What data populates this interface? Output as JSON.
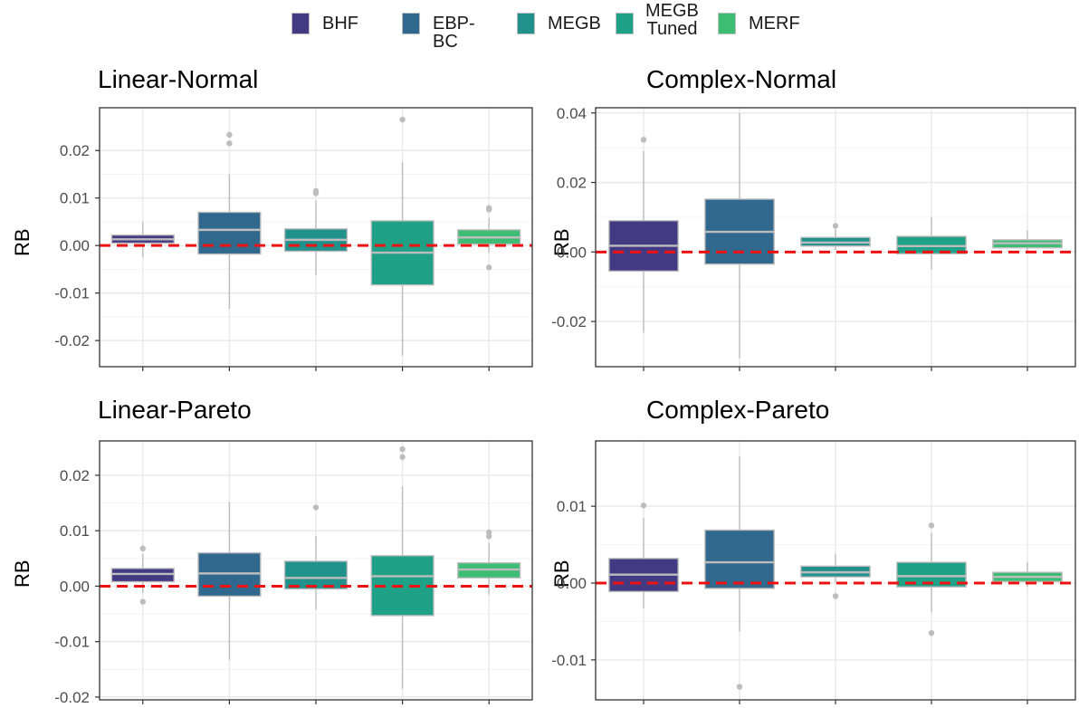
{
  "legend": {
    "items": [
      {
        "label": "BHF",
        "color": "#443983"
      },
      {
        "label": "EBP-BC",
        "color": "#31688e"
      },
      {
        "label": "MEGB",
        "color": "#21918c"
      },
      {
        "label": "MEGB\nTuned",
        "color": "#1fa187"
      },
      {
        "label": "MERF",
        "color": "#3dbc74"
      }
    ]
  },
  "colors": {
    "reference_line": "#ee1111",
    "box_outline": "#bdbdbd",
    "grid": "#ebebeb"
  },
  "chart_data": [
    {
      "type": "boxplot",
      "title": "Linear-Normal",
      "ylabel": "RB",
      "ylim": [
        -0.0255,
        0.029
      ],
      "yticks": [
        -0.02,
        -0.01,
        0.0,
        0.01,
        0.02
      ],
      "ytick_labels": [
        "-0.02",
        "-0.01",
        "0.00",
        "0.01",
        "0.02"
      ],
      "reference_line": 0,
      "boxes": [
        {
          "series": "BHF",
          "q1": 0.0005,
          "median": 0.0013,
          "q3": 0.0022,
          "whisker_low": -0.0025,
          "whisker_high": 0.005,
          "outliers": []
        },
        {
          "series": "EBP-BC",
          "q1": -0.0018,
          "median": 0.0033,
          "q3": 0.007,
          "whisker_low": -0.0133,
          "whisker_high": 0.015,
          "outliers": [
            0.0215,
            0.0233
          ]
        },
        {
          "series": "MEGB",
          "q1": -0.0012,
          "median": 0.0012,
          "q3": 0.0035,
          "whisker_low": -0.0062,
          "whisker_high": 0.0095,
          "outliers": [
            0.011,
            0.0115
          ]
        },
        {
          "series": "MEGB Tuned",
          "q1": -0.0083,
          "median": -0.0015,
          "q3": 0.0052,
          "whisker_low": -0.0232,
          "whisker_high": 0.0175,
          "outliers": [
            0.0265
          ]
        },
        {
          "series": "MERF",
          "q1": 0.0003,
          "median": 0.0017,
          "q3": 0.0033,
          "whisker_low": -0.0015,
          "whisker_high": 0.0058,
          "outliers": [
            0.0076,
            0.0079,
            -0.0046
          ]
        }
      ]
    },
    {
      "type": "boxplot",
      "title": "Complex-Normal",
      "ylabel": "RB",
      "ylim": [
        -0.033,
        0.0415
      ],
      "yticks": [
        -0.02,
        0.0,
        0.02,
        0.04
      ],
      "ytick_labels": [
        "-0.02",
        "0.00",
        "0.02",
        "0.04"
      ],
      "reference_line": 0,
      "boxes": [
        {
          "series": "BHF",
          "q1": -0.0055,
          "median": 0.0018,
          "q3": 0.009,
          "whisker_low": -0.0232,
          "whisker_high": 0.029,
          "outliers": [
            0.0323
          ]
        },
        {
          "series": "EBP-BC",
          "q1": -0.0035,
          "median": 0.0058,
          "q3": 0.0152,
          "whisker_low": -0.0305,
          "whisker_high": 0.04,
          "outliers": []
        },
        {
          "series": "MEGB",
          "q1": 0.0017,
          "median": 0.0027,
          "q3": 0.0042,
          "whisker_low": 0.0005,
          "whisker_high": 0.0065,
          "outliers": [
            0.0075
          ]
        },
        {
          "series": "MEGB Tuned",
          "q1": -0.0005,
          "median": 0.0017,
          "q3": 0.0045,
          "whisker_low": -0.005,
          "whisker_high": 0.01,
          "outliers": []
        },
        {
          "series": "MERF",
          "q1": 0.0012,
          "median": 0.0025,
          "q3": 0.0035,
          "whisker_low": 0.0,
          "whisker_high": 0.0062,
          "outliers": []
        }
      ]
    },
    {
      "type": "boxplot",
      "title": "Linear-Pareto",
      "ylabel": "RB",
      "ylim": [
        -0.0205,
        0.0262
      ],
      "yticks": [
        -0.02,
        -0.01,
        0.0,
        0.01,
        0.02
      ],
      "ytick_labels": [
        "-0.02",
        "-0.01",
        "0.00",
        "0.01",
        "0.02"
      ],
      "reference_line": 0,
      "boxes": [
        {
          "series": "BHF",
          "q1": 0.0008,
          "median": 0.0022,
          "q3": 0.0032,
          "whisker_low": -0.0012,
          "whisker_high": 0.0058,
          "outliers": [
            0.0068,
            -0.0028
          ]
        },
        {
          "series": "EBP-BC",
          "q1": -0.0018,
          "median": 0.0023,
          "q3": 0.006,
          "whisker_low": -0.0133,
          "whisker_high": 0.0152,
          "outliers": []
        },
        {
          "series": "MEGB",
          "q1": -0.0005,
          "median": 0.0015,
          "q3": 0.0045,
          "whisker_low": -0.0042,
          "whisker_high": 0.009,
          "outliers": [
            0.0142
          ]
        },
        {
          "series": "MEGB Tuned",
          "q1": -0.0053,
          "median": 0.0018,
          "q3": 0.0055,
          "whisker_low": -0.0185,
          "whisker_high": 0.018,
          "outliers": [
            0.0233,
            0.0247
          ]
        },
        {
          "series": "MERF",
          "q1": 0.0015,
          "median": 0.003,
          "q3": 0.0042,
          "whisker_low": -0.0015,
          "whisker_high": 0.0078,
          "outliers": [
            0.009,
            0.0097
          ]
        }
      ]
    },
    {
      "type": "boxplot",
      "title": "Complex-Pareto",
      "ylabel": "RB",
      "ylim": [
        -0.0152,
        0.0185
      ],
      "yticks": [
        -0.01,
        0.0,
        0.01
      ],
      "ytick_labels": [
        "-0.01",
        "0.00",
        "0.01"
      ],
      "reference_line": 0,
      "boxes": [
        {
          "series": "BHF",
          "q1": -0.0011,
          "median": 0.0011,
          "q3": 0.0032,
          "whisker_low": -0.0033,
          "whisker_high": 0.0085,
          "outliers": [
            0.0101
          ]
        },
        {
          "series": "EBP-BC",
          "q1": -0.0007,
          "median": 0.0027,
          "q3": 0.0069,
          "whisker_low": -0.0063,
          "whisker_high": 0.0165,
          "outliers": [
            -0.0135
          ]
        },
        {
          "series": "MEGB",
          "q1": 0.0008,
          "median": 0.0014,
          "q3": 0.0022,
          "whisker_low": 0.0,
          "whisker_high": 0.0038,
          "outliers": [
            -0.0017
          ]
        },
        {
          "series": "MEGB Tuned",
          "q1": -0.0005,
          "median": 0.0009,
          "q3": 0.0027,
          "whisker_low": -0.0038,
          "whisker_high": 0.0065,
          "outliers": [
            0.0075,
            -0.0065
          ]
        },
        {
          "series": "MERF",
          "q1": 0.0002,
          "median": 0.0008,
          "q3": 0.0014,
          "whisker_low": -0.0005,
          "whisker_high": 0.0027,
          "outliers": []
        }
      ]
    }
  ]
}
